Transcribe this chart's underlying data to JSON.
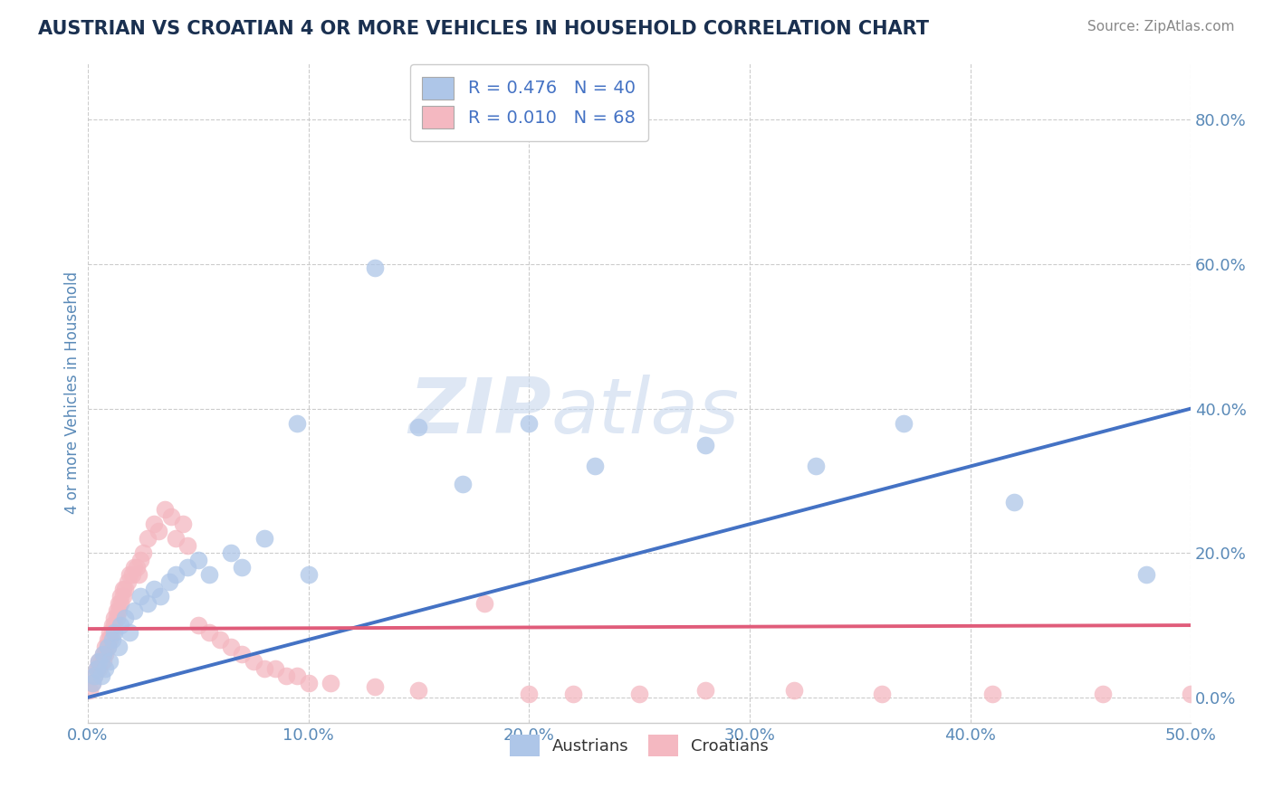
{
  "title": "AUSTRIAN VS CROATIAN 4 OR MORE VEHICLES IN HOUSEHOLD CORRELATION CHART",
  "source": "Source: ZipAtlas.com",
  "ylabel": "4 or more Vehicles in Household",
  "xlim": [
    0.0,
    0.5
  ],
  "ylim": [
    -0.035,
    0.88
  ],
  "xticks": [
    0.0,
    0.1,
    0.2,
    0.3,
    0.4,
    0.5
  ],
  "xtick_labels": [
    "0.0%",
    "10.0%",
    "20.0%",
    "30.0%",
    "40.0%",
    "50.0%"
  ],
  "yticks": [
    0.0,
    0.2,
    0.4,
    0.6,
    0.8
  ],
  "ytick_labels": [
    "0.0%",
    "20.0%",
    "40.0%",
    "60.0%",
    "80.0%"
  ],
  "legend_r_items": [
    {
      "label": "R = 0.476   N = 40",
      "color": "#aec6e8"
    },
    {
      "label": "R = 0.010   N = 68",
      "color": "#f4b8c1"
    }
  ],
  "austrian_line_x": [
    0.0,
    0.5
  ],
  "austrian_line_y": [
    0.0,
    0.4
  ],
  "croatian_line_x": [
    0.0,
    0.5
  ],
  "croatian_line_y": [
    0.095,
    0.1
  ],
  "austrians_x": [
    0.002,
    0.003,
    0.004,
    0.005,
    0.006,
    0.007,
    0.008,
    0.009,
    0.01,
    0.011,
    0.012,
    0.014,
    0.015,
    0.017,
    0.019,
    0.021,
    0.024,
    0.027,
    0.03,
    0.033,
    0.037,
    0.04,
    0.045,
    0.05,
    0.055,
    0.065,
    0.07,
    0.08,
    0.095,
    0.1,
    0.13,
    0.15,
    0.17,
    0.2,
    0.23,
    0.28,
    0.33,
    0.37,
    0.42,
    0.48
  ],
  "austrians_y": [
    0.02,
    0.03,
    0.04,
    0.05,
    0.03,
    0.06,
    0.04,
    0.07,
    0.05,
    0.08,
    0.09,
    0.07,
    0.1,
    0.11,
    0.09,
    0.12,
    0.14,
    0.13,
    0.15,
    0.14,
    0.16,
    0.17,
    0.18,
    0.19,
    0.17,
    0.2,
    0.18,
    0.22,
    0.38,
    0.17,
    0.595,
    0.375,
    0.295,
    0.38,
    0.32,
    0.35,
    0.32,
    0.38,
    0.27,
    0.17
  ],
  "croatians_x": [
    0.001,
    0.002,
    0.003,
    0.004,
    0.005,
    0.005,
    0.006,
    0.007,
    0.007,
    0.008,
    0.008,
    0.009,
    0.009,
    0.01,
    0.01,
    0.011,
    0.011,
    0.012,
    0.012,
    0.013,
    0.013,
    0.014,
    0.014,
    0.015,
    0.015,
    0.016,
    0.016,
    0.017,
    0.018,
    0.019,
    0.02,
    0.021,
    0.022,
    0.023,
    0.024,
    0.025,
    0.027,
    0.03,
    0.032,
    0.035,
    0.038,
    0.04,
    0.043,
    0.045,
    0.05,
    0.055,
    0.06,
    0.065,
    0.07,
    0.075,
    0.08,
    0.085,
    0.09,
    0.095,
    0.1,
    0.11,
    0.13,
    0.15,
    0.18,
    0.2,
    0.22,
    0.25,
    0.28,
    0.32,
    0.36,
    0.41,
    0.46,
    0.5
  ],
  "croatians_y": [
    0.01,
    0.02,
    0.03,
    0.04,
    0.04,
    0.05,
    0.05,
    0.05,
    0.06,
    0.06,
    0.07,
    0.07,
    0.08,
    0.08,
    0.09,
    0.09,
    0.1,
    0.1,
    0.11,
    0.11,
    0.12,
    0.12,
    0.13,
    0.13,
    0.14,
    0.14,
    0.15,
    0.15,
    0.16,
    0.17,
    0.17,
    0.18,
    0.18,
    0.17,
    0.19,
    0.2,
    0.22,
    0.24,
    0.23,
    0.26,
    0.25,
    0.22,
    0.24,
    0.21,
    0.1,
    0.09,
    0.08,
    0.07,
    0.06,
    0.05,
    0.04,
    0.04,
    0.03,
    0.03,
    0.02,
    0.02,
    0.015,
    0.01,
    0.13,
    0.005,
    0.005,
    0.005,
    0.01,
    0.01,
    0.005,
    0.005,
    0.005,
    0.005
  ],
  "austrian_color": "#aec6e8",
  "croatian_color": "#f4b8c1",
  "austrian_line_color": "#4472c4",
  "croatian_line_color": "#e05c7a",
  "watermark_zip": "ZIP",
  "watermark_atlas": "atlas",
  "background_color": "#ffffff",
  "grid_color": "#cccccc",
  "title_color": "#1a3050",
  "tick_color": "#5a8ab8",
  "source_color": "#888888"
}
